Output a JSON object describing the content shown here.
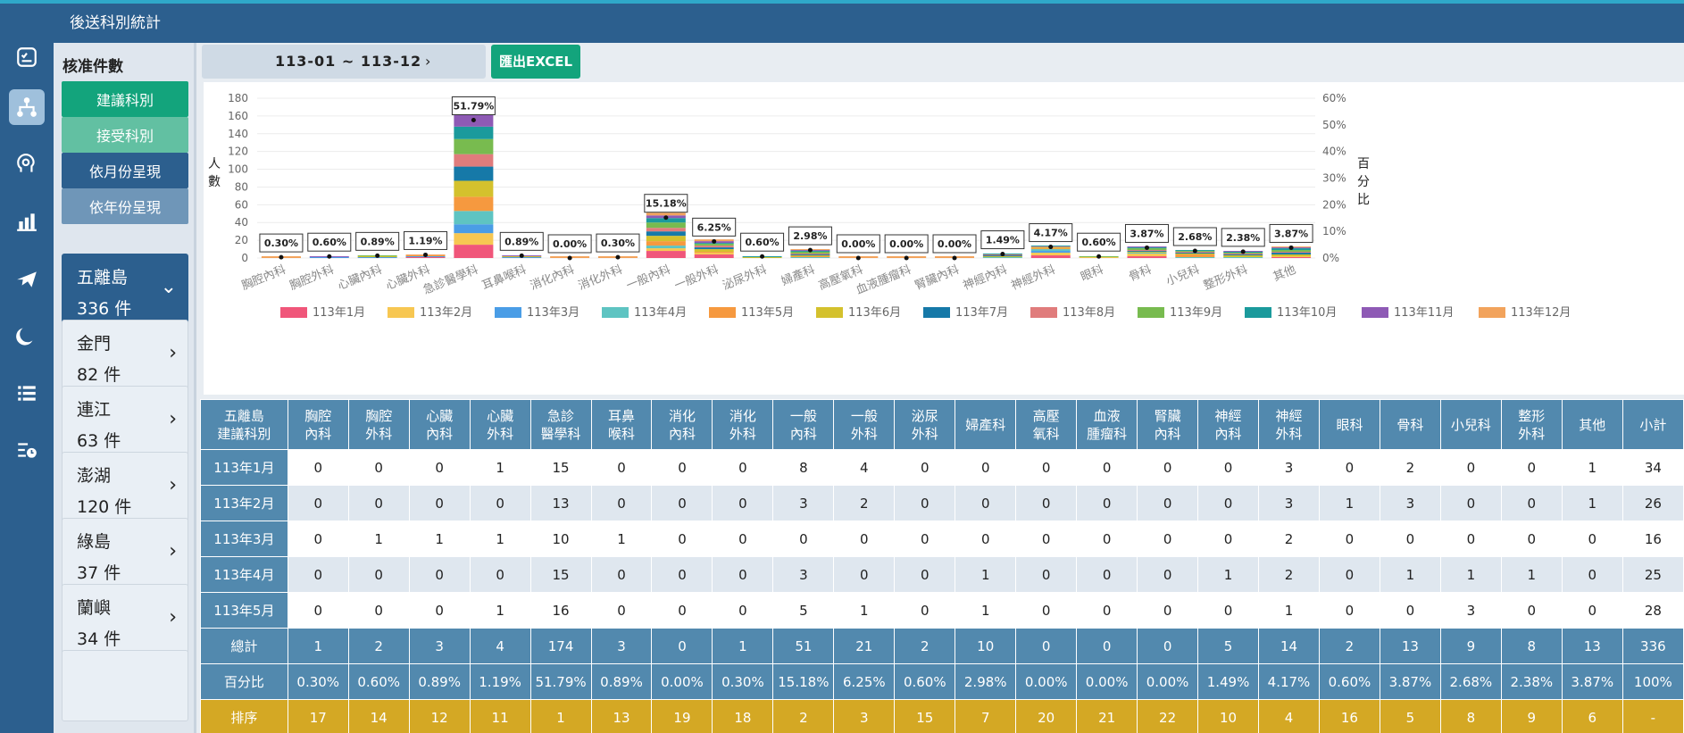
{
  "header": {
    "title": "後送科別統計"
  },
  "sidebar": {
    "title": "核准件數",
    "buttons": [
      {
        "label": "建議科別",
        "color": "#13a47c"
      },
      {
        "label": "接受科別",
        "color": "#62c0a2"
      },
      {
        "label": "依月份呈現",
        "color": "#2c5f8e"
      },
      {
        "label": "依年份呈現",
        "color": "#6f96b8"
      }
    ],
    "regions": [
      {
        "name": "五離島",
        "count": "336 件"
      },
      {
        "name": "金門",
        "count": "82 件"
      },
      {
        "name": "連江",
        "count": "63 件"
      },
      {
        "name": "澎湖",
        "count": "120 件"
      },
      {
        "name": "綠島",
        "count": "37 件"
      },
      {
        "name": "蘭嶼",
        "count": "34 件"
      }
    ]
  },
  "iconbar": [
    "dashboard-icon",
    "org-chart-icon",
    "brain-icon",
    "bar-chart-icon",
    "airplane-icon",
    "moon-icon",
    "list-icon",
    "schedule-list-icon"
  ],
  "toolbar": {
    "range": "113-01 ~ 113-12",
    "arrow": "›",
    "export": "匯出EXCEL"
  },
  "chart_data": {
    "type": "bar",
    "stacked": true,
    "ylabel": "人數",
    "y2label": "百分比",
    "ylim": [
      0,
      180
    ],
    "yticks": [
      0,
      20,
      40,
      60,
      80,
      100,
      120,
      140,
      160,
      180
    ],
    "y2ticks": [
      "0%",
      "10%",
      "20%",
      "30%",
      "40%",
      "50%",
      "60%"
    ],
    "y2lim": [
      0,
      60
    ],
    "categories": [
      "胸腔內科",
      "胸腔外科",
      "心臟內科",
      "心臟外科",
      "急診醫學科",
      "耳鼻喉科",
      "消化內科",
      "消化外科",
      "一般內科",
      "一般外科",
      "泌尿外科",
      "婦產科",
      "高壓氧科",
      "血液腫瘤科",
      "腎臟內科",
      "神經內科",
      "神經外科",
      "眼科",
      "骨科",
      "小兒科",
      "整形外科",
      "其他"
    ],
    "totals": [
      1,
      2,
      3,
      4,
      174,
      3,
      0,
      1,
      51,
      21,
      2,
      10,
      0,
      0,
      0,
      5,
      14,
      2,
      13,
      9,
      8,
      13
    ],
    "percent_labels": [
      "0.30%",
      "0.60%",
      "0.89%",
      "1.19%",
      "51.79%",
      "0.89%",
      "0.00%",
      "0.30%",
      "15.18%",
      "6.25%",
      "0.60%",
      "2.98%",
      "0.00%",
      "0.00%",
      "0.00%",
      "1.49%",
      "4.17%",
      "0.60%",
      "3.87%",
      "2.68%",
      "2.38%",
      "3.87%"
    ],
    "percent_values": [
      0.3,
      0.6,
      0.89,
      1.19,
      51.79,
      0.89,
      0.0,
      0.3,
      15.18,
      6.25,
      0.6,
      2.98,
      0.0,
      0.0,
      0.0,
      1.49,
      4.17,
      0.6,
      3.87,
      2.68,
      2.38,
      3.87
    ],
    "series": [
      {
        "name": "113年1月",
        "color": "#f0567a",
        "values": [
          0,
          0,
          0,
          1,
          15,
          0,
          0,
          0,
          8,
          4,
          0,
          0,
          0,
          0,
          0,
          0,
          3,
          0,
          2,
          0,
          0,
          1
        ]
      },
      {
        "name": "113年2月",
        "color": "#f7c752",
        "values": [
          0,
          0,
          0,
          0,
          13,
          0,
          0,
          0,
          3,
          2,
          0,
          0,
          0,
          0,
          0,
          0,
          3,
          1,
          3,
          0,
          0,
          1
        ]
      },
      {
        "name": "113年3月",
        "color": "#4a9de6",
        "values": [
          0,
          1,
          1,
          1,
          10,
          1,
          0,
          0,
          0,
          0,
          0,
          0,
          0,
          0,
          0,
          0,
          2,
          0,
          0,
          0,
          0,
          0
        ]
      },
      {
        "name": "113年4月",
        "color": "#5ec4c2",
        "values": [
          0,
          0,
          0,
          0,
          15,
          0,
          0,
          0,
          3,
          0,
          0,
          1,
          0,
          0,
          0,
          1,
          2,
          0,
          1,
          1,
          1,
          0
        ]
      },
      {
        "name": "113年5月",
        "color": "#f6993f",
        "values": [
          0,
          0,
          0,
          1,
          16,
          0,
          0,
          0,
          5,
          1,
          0,
          1,
          0,
          0,
          0,
          0,
          1,
          0,
          0,
          3,
          0,
          0
        ]
      },
      {
        "name": "113年6月",
        "color": "#d4c12d",
        "values": [
          0,
          0,
          1,
          0,
          18,
          1,
          0,
          0,
          6,
          3,
          1,
          1,
          0,
          0,
          0,
          1,
          1,
          0,
          1,
          1,
          2,
          2
        ]
      },
      {
        "name": "113年7月",
        "color": "#1679a8",
        "values": [
          0,
          0,
          0,
          0,
          16,
          0,
          0,
          0,
          5,
          2,
          0,
          1,
          0,
          0,
          0,
          1,
          0,
          0,
          1,
          1,
          1,
          2
        ]
      },
      {
        "name": "113年8月",
        "color": "#e07c7c",
        "values": [
          0,
          0,
          0,
          0,
          14,
          0,
          0,
          0,
          4,
          2,
          0,
          1,
          0,
          0,
          0,
          1,
          1,
          0,
          1,
          1,
          1,
          1
        ]
      },
      {
        "name": "113年9月",
        "color": "#78bb4f",
        "values": [
          1,
          0,
          1,
          0,
          17,
          0,
          0,
          1,
          6,
          2,
          0,
          2,
          0,
          0,
          0,
          0,
          0,
          1,
          2,
          1,
          1,
          2
        ]
      },
      {
        "name": "113年10月",
        "color": "#1b9a9c",
        "values": [
          0,
          0,
          0,
          0,
          14,
          0,
          0,
          0,
          5,
          1,
          1,
          1,
          0,
          0,
          0,
          1,
          1,
          0,
          1,
          1,
          1,
          2
        ]
      },
      {
        "name": "113年11月",
        "color": "#8e5ab5",
        "values": [
          0,
          1,
          0,
          0,
          13,
          1,
          0,
          0,
          3,
          2,
          0,
          1,
          0,
          0,
          0,
          0,
          0,
          0,
          1,
          0,
          1,
          1
        ]
      },
      {
        "name": "113年12月",
        "color": "#f2a35c",
        "values": [
          0,
          0,
          0,
          1,
          13,
          0,
          0,
          0,
          3,
          2,
          0,
          1,
          0,
          0,
          0,
          0,
          0,
          0,
          0,
          0,
          0,
          1
        ]
      }
    ]
  },
  "table": {
    "corner": [
      "五離島",
      "建議科別"
    ],
    "columns": [
      [
        "胸腔",
        "內科"
      ],
      [
        "胸腔",
        "外科"
      ],
      [
        "心臟",
        "內科"
      ],
      [
        "心臟",
        "外科"
      ],
      [
        "急診",
        "醫學科"
      ],
      [
        "耳鼻",
        "喉科"
      ],
      [
        "消化",
        "內科"
      ],
      [
        "消化",
        "外科"
      ],
      [
        "一般",
        "內科"
      ],
      [
        "一般",
        "外科"
      ],
      [
        "泌尿",
        "外科"
      ],
      [
        "婦產科"
      ],
      [
        "高壓",
        "氧科"
      ],
      [
        "血液",
        "腫瘤科"
      ],
      [
        "腎臟",
        "內科"
      ],
      [
        "神經",
        "內科"
      ],
      [
        "神經",
        "外科"
      ],
      [
        "眼科"
      ],
      [
        "骨科"
      ],
      [
        "小兒科"
      ],
      [
        "整形",
        "外科"
      ],
      [
        "其他"
      ],
      [
        "小計"
      ]
    ],
    "rows": [
      {
        "label": "113年1月",
        "values": [
          "0",
          "0",
          "0",
          "1",
          "15",
          "0",
          "0",
          "0",
          "8",
          "4",
          "0",
          "0",
          "0",
          "0",
          "0",
          "0",
          "3",
          "0",
          "2",
          "0",
          "0",
          "1",
          "34"
        ]
      },
      {
        "label": "113年2月",
        "values": [
          "0",
          "0",
          "0",
          "0",
          "13",
          "0",
          "0",
          "0",
          "3",
          "2",
          "0",
          "0",
          "0",
          "0",
          "0",
          "0",
          "3",
          "1",
          "3",
          "0",
          "0",
          "1",
          "26"
        ]
      },
      {
        "label": "113年3月",
        "values": [
          "0",
          "1",
          "1",
          "1",
          "10",
          "1",
          "0",
          "0",
          "0",
          "0",
          "0",
          "0",
          "0",
          "0",
          "0",
          "0",
          "2",
          "0",
          "0",
          "0",
          "0",
          "0",
          "16"
        ]
      },
      {
        "label": "113年4月",
        "values": [
          "0",
          "0",
          "0",
          "0",
          "15",
          "0",
          "0",
          "0",
          "3",
          "0",
          "0",
          "1",
          "0",
          "0",
          "0",
          "1",
          "2",
          "0",
          "1",
          "1",
          "1",
          "0",
          "25"
        ]
      },
      {
        "label": "113年5月",
        "values": [
          "0",
          "0",
          "0",
          "1",
          "16",
          "0",
          "0",
          "0",
          "5",
          "1",
          "0",
          "1",
          "0",
          "0",
          "0",
          "0",
          "1",
          "0",
          "0",
          "3",
          "0",
          "0",
          "28"
        ]
      }
    ],
    "total": {
      "label": "總計",
      "values": [
        "1",
        "2",
        "3",
        "4",
        "174",
        "3",
        "0",
        "1",
        "51",
        "21",
        "2",
        "10",
        "0",
        "0",
        "0",
        "5",
        "14",
        "2",
        "13",
        "9",
        "8",
        "13",
        "336"
      ]
    },
    "percent": {
      "label": "百分比",
      "values": [
        "0.30%",
        "0.60%",
        "0.89%",
        "1.19%",
        "51.79%",
        "0.89%",
        "0.00%",
        "0.30%",
        "15.18%",
        "6.25%",
        "0.60%",
        "2.98%",
        "0.00%",
        "0.00%",
        "0.00%",
        "1.49%",
        "4.17%",
        "0.60%",
        "3.87%",
        "2.68%",
        "2.38%",
        "3.87%",
        "100%"
      ]
    },
    "rank": {
      "label": "排序",
      "values": [
        "17",
        "14",
        "12",
        "11",
        "1",
        "13",
        "19",
        "18",
        "2",
        "3",
        "15",
        "7",
        "20",
        "21",
        "22",
        "10",
        "4",
        "16",
        "5",
        "8",
        "9",
        "6",
        "-"
      ]
    }
  }
}
